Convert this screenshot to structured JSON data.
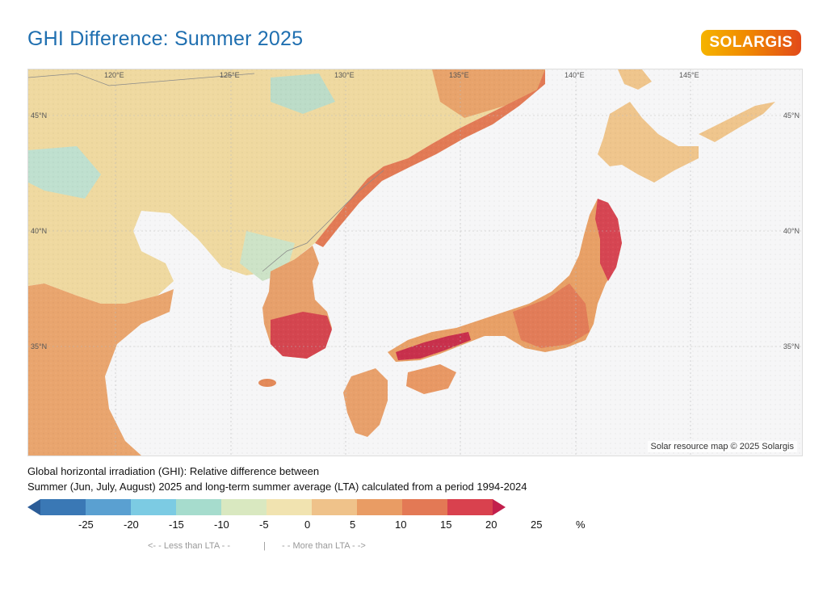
{
  "header": {
    "title": "GHI Difference: Summer 2025",
    "logo_text": "SOLARGIS"
  },
  "map": {
    "lon_labels": [
      "120°E",
      "125°E",
      "130°E",
      "135°E",
      "140°E",
      "145°E"
    ],
    "lat_labels": [
      "45°N",
      "40°N",
      "35°N"
    ],
    "credit": "Solar resource map © 2025 Solargis"
  },
  "caption": {
    "line1": "Global horizontal irradiation (GHI): Relative difference between",
    "line2": "Summer (Jun, July, August) 2025 and long-term summer average (LTA) calculated from a period 1994-2024"
  },
  "legend": {
    "colors": [
      "#2b5c97",
      "#3a78b5",
      "#5aa0d1",
      "#7ccbe3",
      "#a6dccd",
      "#d9e8c0",
      "#f1e3b0",
      "#efc28a",
      "#e99c64",
      "#e37955",
      "#d9414e",
      "#c21f4c"
    ],
    "labels": [
      "-25",
      "-20",
      "-15",
      "-10",
      "-5",
      "0",
      "5",
      "10",
      "15",
      "20",
      "25",
      "%"
    ],
    "less_than": "<- -  Less than LTA  - -",
    "separator": "|",
    "more_than": "- -  More than LTA  - ->"
  }
}
